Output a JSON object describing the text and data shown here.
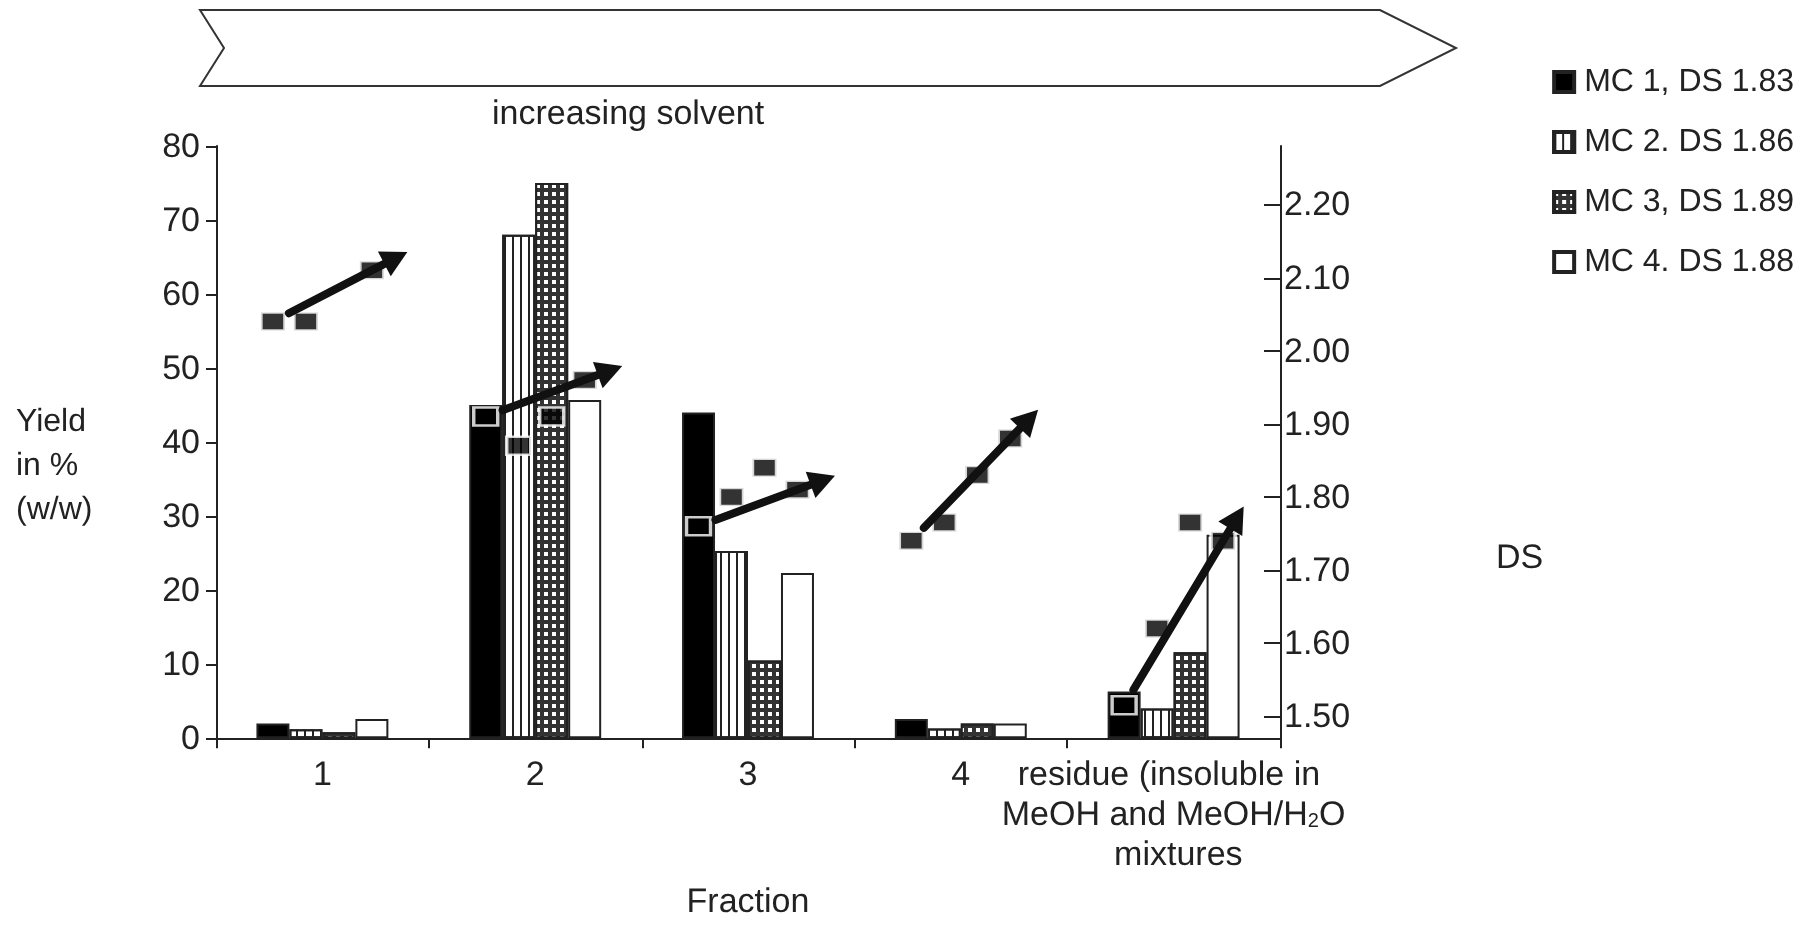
{
  "chart_data": {
    "type": "bar",
    "categories": [
      "1",
      "2",
      "3",
      "4",
      "residue (insoluble in MeOH and MeOH/H$_{2}$O mixtures"
    ],
    "xlabel": "Fraction",
    "ylabel": "Yield in % (w/w)",
    "y2label": "DS",
    "annotations": [
      "increasing solvent"
    ],
    "series": [
      {
        "name": "MC 1, DS 1.83",
        "color": "#000000",
        "values": [
          2,
          45,
          44,
          2.6,
          6.3
        ]
      },
      {
        "name": "MC 2. DS 1.86",
        "color": "#ffffff",
        "values": [
          1.2,
          68,
          25.3,
          1.3,
          4
        ]
      },
      {
        "name": "MC 3, DS 1.89",
        "color": "#333333",
        "values": [
          0.8,
          75,
          10.5,
          2,
          11.6
        ]
      },
      {
        "name": "MC 4. DS 1.88",
        "color": "#ffffff",
        "values": [
          2.6,
          45.7,
          22.3,
          2,
          27.5
        ]
      },
      {
        "type": "scatter",
        "axis": "y2",
        "color": "#000000",
        "values": [
          2.04,
          1.91,
          1.76,
          1.74,
          1.515
        ]
      },
      {
        "type": "scatter",
        "axis": "y2",
        "color": "#000000",
        "values": [
          2.04,
          1.87,
          1.8,
          1.765,
          1.62
        ]
      },
      {
        "type": "scatter",
        "axis": "y2",
        "color": "#000000",
        "values": [
          null,
          1.91,
          1.84,
          1.83,
          1.765
        ]
      },
      {
        "type": "scatter",
        "axis": "y2",
        "color": "#000000",
        "values": [
          2.11,
          1.96,
          1.81,
          1.88,
          1.74
        ]
      }
    ],
    "ylim": [
      0,
      80
    ],
    "yticks": [
      0,
      10,
      20,
      30,
      40,
      50,
      60,
      70,
      80
    ],
    "y2lim": [
      1.47,
      2.28
    ],
    "y2ticks": [
      {
        "value": 1.5,
        "label": "1.50"
      },
      {
        "value": 1.6,
        "label": "1.60"
      },
      {
        "value": 1.7,
        "label": "1.70"
      },
      {
        "value": 1.8,
        "label": "1.80"
      },
      {
        "value": 1.9,
        "label": "1.90"
      },
      {
        "value": 2.0,
        "label": "2.00"
      },
      {
        "value": 2.1,
        "label": "2.10"
      },
      {
        "value": 2.2,
        "label": "2.20"
      }
    ],
    "grid": false,
    "legend": "top right",
    "marker": "square"
  }
}
